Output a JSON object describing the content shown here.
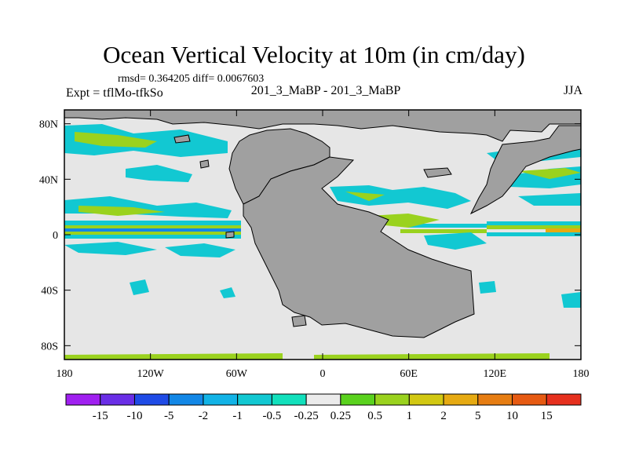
{
  "title": "Ocean Vertical Velocity at 10m (in cm/day)",
  "stats_line": "rmsd= 0.364205 diff= 0.0067603",
  "experiment_label": "Expt = tflMo-tfkSo",
  "center_label": "201_3_MaBP - 201_3_MaBP",
  "season_label": "JJA",
  "map": {
    "projection": "cylindrical-equidistant",
    "lon_range": [
      -180,
      180
    ],
    "lat_range": [
      -90,
      90
    ],
    "x_ticks": [
      "180",
      "120W",
      "60W",
      "0",
      "60E",
      "120E",
      "180"
    ],
    "x_tick_values": [
      -180,
      -120,
      -60,
      0,
      60,
      120,
      180
    ],
    "y_ticks": [
      "80N",
      "40N",
      "0",
      "40S",
      "80S"
    ],
    "y_tick_values": [
      80,
      40,
      0,
      -40,
      -80
    ],
    "land_color": "#a0a0a0",
    "background_color": "#e6e6e6"
  },
  "colorbar": {
    "labels": [
      "-15",
      "-10",
      "-5",
      "-2",
      "-1",
      "-0.5",
      "-0.25",
      "0.25",
      "0.5",
      "1",
      "2",
      "5",
      "10",
      "15"
    ],
    "colors": [
      "#a020f0",
      "#6a2ee6",
      "#1f4be6",
      "#1287e6",
      "#12b3e6",
      "#12c8d2",
      "#12e0bc",
      "#ebebeb",
      "#5ad21e",
      "#9ad21e",
      "#d2c812",
      "#e6aa12",
      "#e67d12",
      "#e65a12",
      "#e6301e"
    ]
  }
}
